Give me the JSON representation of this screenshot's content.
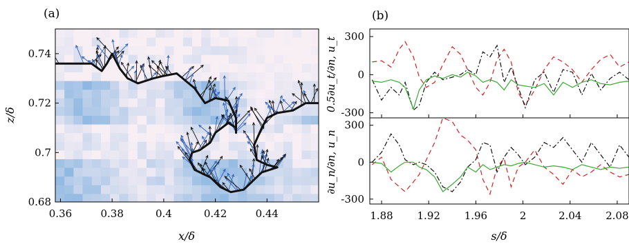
{
  "chart_data": [
    {
      "panel_label": "(a)",
      "type": "heatmap",
      "xlabel": "x/δ",
      "ylabel": "z/δ",
      "xlim": [
        0.358,
        0.46
      ],
      "ylim": [
        0.68,
        0.75
      ],
      "xticks": [
        "0.36",
        "0.38",
        "0.4",
        "0.42",
        "0.44"
      ],
      "xtick_values": [
        0.36,
        0.38,
        0.4,
        0.42,
        0.44
      ],
      "yticks": [
        "0.68",
        "0.7",
        "0.72",
        "0.74"
      ],
      "ytick_values": [
        0.68,
        0.7,
        0.72,
        0.74
      ],
      "overlay": "velocity vectors (black and blue arrows) along the interface contour",
      "colormap_colors": [
        "#f8eff5",
        "#6fa8dc"
      ],
      "contour_color": "#111111",
      "arrow_colors": [
        "#111111",
        "#2f5fb5"
      ],
      "interface_outline": [
        [
          0.358,
          0.736
        ],
        [
          0.372,
          0.736
        ],
        [
          0.376,
          0.733
        ],
        [
          0.378,
          0.736
        ],
        [
          0.38,
          0.74
        ],
        [
          0.383,
          0.734
        ],
        [
          0.386,
          0.73
        ],
        [
          0.39,
          0.728
        ],
        [
          0.396,
          0.73
        ],
        [
          0.4,
          0.731
        ],
        [
          0.405,
          0.732
        ],
        [
          0.412,
          0.726
        ],
        [
          0.416,
          0.72
        ],
        [
          0.42,
          0.722
        ],
        [
          0.425,
          0.721
        ],
        [
          0.428,
          0.714
        ],
        [
          0.428,
          0.708
        ],
        [
          0.428,
          0.71
        ],
        [
          0.425,
          0.712
        ],
        [
          0.42,
          0.708
        ],
        [
          0.418,
          0.704
        ],
        [
          0.414,
          0.701
        ],
        [
          0.411,
          0.7
        ],
        [
          0.41,
          0.697
        ],
        [
          0.412,
          0.693
        ],
        [
          0.416,
          0.691
        ],
        [
          0.418,
          0.69
        ],
        [
          0.422,
          0.686
        ],
        [
          0.426,
          0.684
        ],
        [
          0.431,
          0.685
        ],
        [
          0.435,
          0.689
        ],
        [
          0.438,
          0.692
        ],
        [
          0.444,
          0.694
        ],
        [
          0.44,
          0.695
        ],
        [
          0.436,
          0.697
        ],
        [
          0.435,
          0.703
        ],
        [
          0.438,
          0.71
        ],
        [
          0.44,
          0.714
        ],
        [
          0.444,
          0.716
        ],
        [
          0.45,
          0.717
        ],
        [
          0.455,
          0.72
        ],
        [
          0.46,
          0.72
        ]
      ]
    },
    {
      "panel_label": "(b)",
      "type": "line",
      "stacked_panels": 2,
      "xlabel": "s/δ",
      "xlim": [
        1.87,
        2.09
      ],
      "xticks": [
        "1.88",
        "1.92",
        "1.96",
        "2",
        "2.04",
        "2.08"
      ],
      "xtick_values": [
        1.88,
        1.92,
        1.96,
        2.0,
        2.04,
        2.08
      ],
      "panels": [
        {
          "ylabel": "0.5∂u_t/∂n, u_t",
          "ylim": [
            -340,
            360
          ],
          "yticks": [
            "300",
            "0",
            "-300"
          ],
          "ytick_values": [
            300,
            0,
            -300
          ],
          "series": [
            {
              "color": "#d62020",
              "style": "dashed",
              "x": [
                1.872,
                1.88,
                1.888,
                1.895,
                1.9,
                1.907,
                1.912,
                1.918,
                1.925,
                1.932,
                1.94,
                1.947,
                1.953,
                1.96,
                1.966,
                1.972,
                1.978,
                1.984,
                1.99,
                1.996,
                2.002,
                2.01,
                2.018,
                2.026,
                2.034,
                2.042,
                2.05,
                2.058,
                2.066,
                2.074,
                2.082,
                2.09
              ],
              "values": [
                100,
                110,
                60,
                200,
                260,
                140,
                -20,
                -100,
                -60,
                80,
                220,
                160,
                40,
                -100,
                -160,
                -60,
                120,
                200,
                100,
                -140,
                -240,
                -120,
                40,
                140,
                100,
                40,
                -60,
                40,
                120,
                160,
                60,
                100
              ]
            },
            {
              "color": "#111111",
              "style": "dashdot",
              "x": [
                1.872,
                1.88,
                1.888,
                1.895,
                1.9,
                1.907,
                1.912,
                1.918,
                1.925,
                1.932,
                1.94,
                1.947,
                1.953,
                1.96,
                1.966,
                1.972,
                1.978,
                1.984,
                1.99,
                1.996,
                2.002,
                2.01,
                2.018,
                2.026,
                2.034,
                2.042,
                2.05,
                2.058,
                2.066,
                2.074,
                2.082,
                2.09
              ],
              "values": [
                -40,
                -200,
                -100,
                -160,
                -60,
                -280,
                -240,
                -60,
                20,
                -40,
                -20,
                0,
                40,
                0,
                180,
                140,
                230,
                -60,
                60,
                -100,
                -260,
                -40,
                20,
                -140,
                40,
                20,
                -160,
                10,
                -120,
                -30,
                20,
                -40
              ]
            },
            {
              "color": "#3aa832",
              "style": "solid",
              "x": [
                1.872,
                1.88,
                1.888,
                1.895,
                1.9,
                1.907,
                1.912,
                1.918,
                1.925,
                1.932,
                1.94,
                1.947,
                1.953,
                1.96,
                1.966,
                1.972,
                1.978,
                1.984,
                1.99,
                1.996,
                2.002,
                2.01,
                2.018,
                2.026,
                2.034,
                2.042,
                2.05,
                2.058,
                2.066,
                2.074,
                2.082,
                2.09
              ],
              "values": [
                -50,
                -60,
                -40,
                -60,
                -100,
                -270,
                -120,
                -40,
                -10,
                -30,
                0,
                -20,
                20,
                -10,
                -60,
                -40,
                -60,
                -120,
                -40,
                -80,
                -90,
                -100,
                -70,
                -160,
                -60,
                -100,
                -60,
                -40,
                -70,
                -80,
                -60,
                -50
              ]
            }
          ]
        },
        {
          "ylabel": "∂u_n/∂n, u_n",
          "ylim": [
            -340,
            360
          ],
          "yticks": [
            "300",
            "0",
            "-300"
          ],
          "ytick_values": [
            300,
            0,
            -300
          ],
          "series": [
            {
              "color": "#d62020",
              "style": "dashed",
              "x": [
                1.872,
                1.88,
                1.888,
                1.895,
                1.9,
                1.907,
                1.912,
                1.918,
                1.925,
                1.932,
                1.94,
                1.947,
                1.953,
                1.96,
                1.966,
                1.972,
                1.978,
                1.984,
                1.99,
                1.996,
                2.002,
                2.01,
                2.018,
                2.026,
                2.034,
                2.042,
                2.05,
                2.058,
                2.066,
                2.074,
                2.082,
                2.09
              ],
              "values": [
                -20,
                40,
                -140,
                -200,
                -240,
                -160,
                -100,
                20,
                160,
                360,
                330,
                220,
                180,
                100,
                -140,
                -260,
                -40,
                30,
                -200,
                -40,
                0,
                100,
                -40,
                -100,
                -180,
                -60,
                -120,
                -80,
                -20,
                -80,
                -120,
                -100
              ]
            },
            {
              "color": "#111111",
              "style": "dashdot",
              "x": [
                1.872,
                1.88,
                1.888,
                1.895,
                1.9,
                1.907,
                1.912,
                1.918,
                1.925,
                1.932,
                1.94,
                1.947,
                1.953,
                1.96,
                1.966,
                1.972,
                1.978,
                1.984,
                1.99,
                1.996,
                2.002,
                2.01,
                2.018,
                2.026,
                2.034,
                2.042,
                2.05,
                2.058,
                2.066,
                2.074,
                2.082,
                2.09
              ],
              "values": [
                0,
                80,
                230,
                140,
                20,
                -20,
                0,
                -20,
                -80,
                -200,
                -240,
                -160,
                -40,
                20,
                160,
                140,
                -80,
                40,
                120,
                60,
                -20,
                40,
                160,
                120,
                200,
                100,
                0,
                160,
                60,
                -40,
                140,
                40
              ]
            },
            {
              "color": "#3aa832",
              "style": "solid",
              "x": [
                1.872,
                1.88,
                1.888,
                1.895,
                1.9,
                1.907,
                1.912,
                1.918,
                1.925,
                1.932,
                1.94,
                1.947,
                1.953,
                1.96,
                1.966,
                1.972,
                1.978,
                1.984,
                1.99,
                1.996,
                2.002,
                2.01,
                2.018,
                2.026,
                2.034,
                2.042,
                2.05,
                2.058,
                2.066,
                2.074,
                2.082,
                2.09
              ],
              "values": [
                0,
                -10,
                -80,
                -30,
                0,
                0,
                -40,
                -60,
                -120,
                -240,
                -180,
                -120,
                -40,
                -80,
                -20,
                -60,
                -40,
                -20,
                -30,
                -10,
                0,
                -20,
                -40,
                -30,
                -40,
                -60,
                -20,
                -40,
                -60,
                -40,
                -50,
                -40
              ]
            }
          ]
        }
      ]
    }
  ]
}
